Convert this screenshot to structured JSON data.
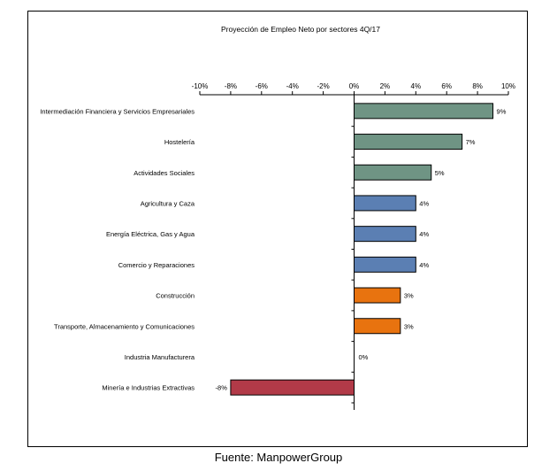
{
  "chart_data": {
    "type": "bar",
    "orientation": "horizontal",
    "title": "Proyección de Empleo Neto por sectores 4Q/17",
    "categories": [
      "Intermediación Financiera y Servicios Empresariales",
      "Hostelería",
      "Actividades Sociales",
      "Agricultura y Caza",
      "Energía Eléctrica, Gas y Agua",
      "Comercio y Reparaciones",
      "Construcción",
      "Transporte, Almacenamiento y Comunicaciones",
      "Industria Manufacturera",
      "Minería e Industrias Extractivas"
    ],
    "values": [
      9,
      7,
      5,
      4,
      4,
      4,
      3,
      3,
      0,
      -8
    ],
    "value_labels": [
      "9%",
      "7%",
      "5%",
      "4%",
      "4%",
      "4%",
      "3%",
      "3%",
      "0%",
      "-8%"
    ],
    "bar_colors": [
      "#6f9484",
      "#6f9484",
      "#6f9484",
      "#5b7fb3",
      "#5b7fb3",
      "#5b7fb3",
      "#e8730f",
      "#e8730f",
      "#6f9484",
      "#b23a48"
    ],
    "xlim": [
      -10,
      10
    ],
    "xticks": [
      -10,
      -8,
      -6,
      -4,
      -2,
      0,
      2,
      4,
      6,
      8,
      10
    ],
    "xtick_labels": [
      "-10%",
      "-8%",
      "-6%",
      "-4%",
      "-2%",
      "0%",
      "2%",
      "4%",
      "6%",
      "8%",
      "10%"
    ],
    "xaxis_position": "top",
    "xlabel": "",
    "ylabel": "",
    "grid": false,
    "legend": "none"
  },
  "source": "Fuente: ManpowerGroup"
}
